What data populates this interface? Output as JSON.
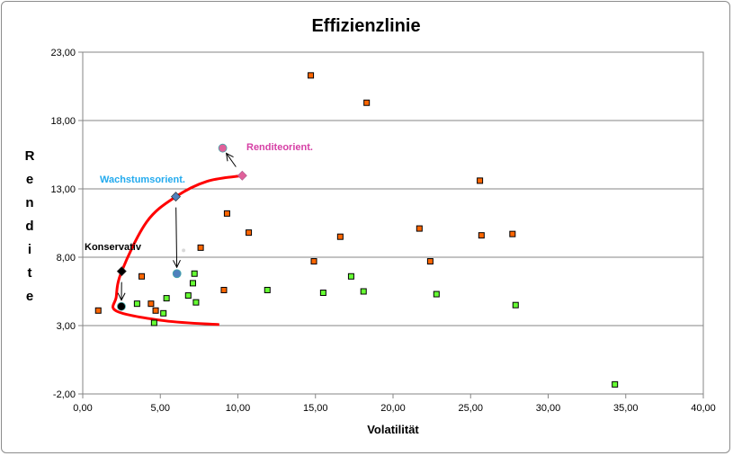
{
  "chart_data": {
    "type": "scatter",
    "title": "Effizienzlinie",
    "xlabel": "Volatilität",
    "ylabel": "Rendite",
    "xlim": [
      0,
      40
    ],
    "ylim": [
      -2,
      23
    ],
    "xticks": [
      "0,00",
      "5,00",
      "10,00",
      "15,00",
      "20,00",
      "25,00",
      "30,00",
      "35,00",
      "40,00"
    ],
    "yticks": [
      "-2,00",
      "3,00",
      "8,00",
      "13,00",
      "18,00",
      "23,00"
    ],
    "grid": "horizontal",
    "colors": {
      "orange": "#ff6600",
      "green": "#66ff33",
      "frontier": "#ff0000",
      "konservativ": "#000000",
      "wachstum": "#4f81bd",
      "rendite": "#e0609a"
    },
    "series": [
      {
        "id": "orange",
        "marker": "square",
        "points": [
          [
            1.0,
            4.1
          ],
          [
            3.8,
            6.6
          ],
          [
            4.4,
            4.6
          ],
          [
            4.7,
            4.1
          ],
          [
            7.6,
            8.7
          ],
          [
            9.3,
            11.2
          ],
          [
            10.7,
            9.8
          ],
          [
            9.1,
            5.6
          ],
          [
            14.7,
            21.3
          ],
          [
            18.3,
            19.3
          ],
          [
            25.6,
            13.6
          ],
          [
            16.6,
            9.5
          ],
          [
            21.7,
            10.1
          ],
          [
            25.7,
            9.6
          ],
          [
            27.7,
            9.7
          ],
          [
            14.9,
            7.7
          ],
          [
            22.4,
            7.7
          ]
        ]
      },
      {
        "id": "green",
        "marker": "square",
        "points": [
          [
            11.9,
            5.6
          ],
          [
            17.3,
            6.6
          ],
          [
            15.5,
            5.4
          ],
          [
            18.1,
            5.5
          ],
          [
            22.8,
            5.3
          ],
          [
            27.9,
            4.5
          ],
          [
            34.3,
            -1.3
          ],
          [
            7.2,
            6.8
          ],
          [
            7.1,
            6.1
          ],
          [
            6.8,
            5.2
          ],
          [
            7.3,
            4.7
          ],
          [
            5.4,
            5.0
          ],
          [
            3.5,
            4.6
          ],
          [
            5.2,
            3.9
          ],
          [
            4.6,
            3.2
          ]
        ]
      },
      {
        "id": "gray",
        "marker": "dot",
        "points": [
          [
            6.5,
            8.5
          ]
        ]
      }
    ],
    "frontier": [
      [
        8.8,
        3.07
      ],
      [
        5.3,
        3.35
      ],
      [
        2.2,
        4.05
      ],
      [
        2.16,
        5.1
      ],
      [
        2.51,
        6.97
      ],
      [
        4.13,
        10.6
      ],
      [
        6.0,
        12.43
      ],
      [
        8.0,
        13.55
      ],
      [
        10.28,
        13.97
      ]
    ],
    "portfolios": [
      {
        "label": "Konservativ",
        "color": "konservativ",
        "frontier_point": [
          2.51,
          6.97
        ],
        "actual_point": [
          2.49,
          4.4
        ]
      },
      {
        "label": "Wachstumsorient.",
        "color": "wachstum",
        "frontier_point": [
          6.0,
          12.43
        ],
        "actual_point": [
          6.07,
          6.8
        ]
      },
      {
        "label": "Renditeorient.",
        "color": "rendite",
        "frontier_point": [
          10.28,
          13.97
        ],
        "actual_point": [
          9.02,
          15.98
        ]
      }
    ]
  }
}
